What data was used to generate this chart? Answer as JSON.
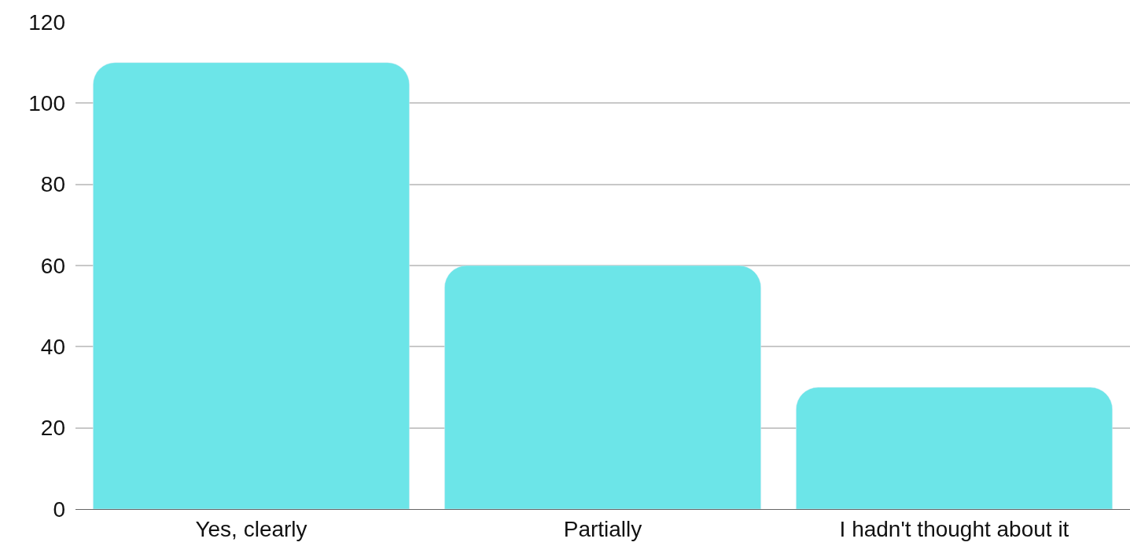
{
  "chart_data": {
    "type": "bar",
    "categories": [
      "Yes, clearly",
      "Partially",
      "I hadn't thought about it"
    ],
    "values": [
      110,
      60,
      30
    ],
    "color": "#6ce5e8",
    "ylim": [
      0,
      120
    ],
    "yticks": [
      0,
      20,
      40,
      60,
      80,
      100,
      120
    ],
    "grid": "y",
    "legend": false
  }
}
